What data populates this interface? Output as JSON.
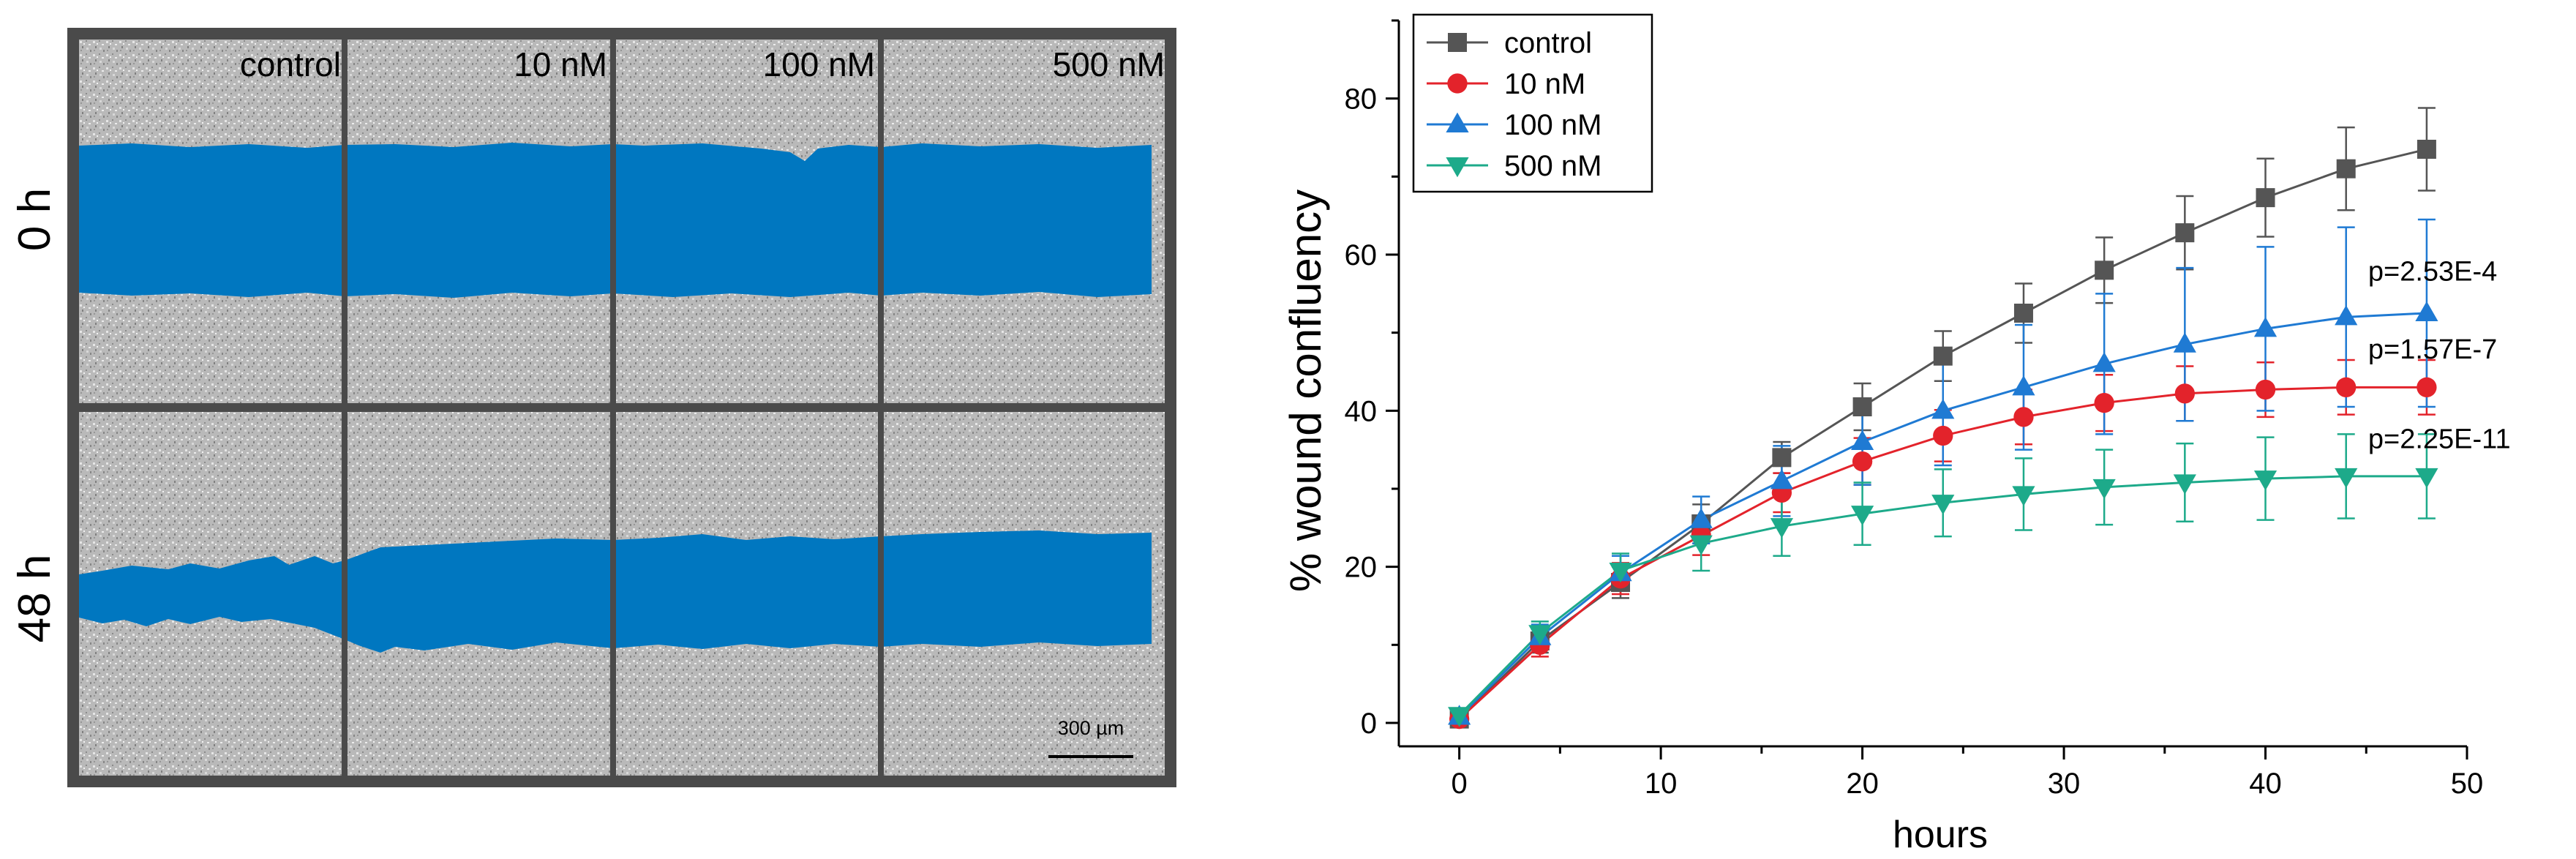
{
  "image_panel": {
    "row_labels": [
      "0 h",
      "48 h"
    ],
    "column_labels": [
      "control",
      "10 nM",
      "100 nM",
      "500 nM"
    ],
    "scale_bar_label": "300 µm",
    "colors": {
      "frame": "#4a4a4a",
      "cells": "#b7b7b7",
      "wound": "#0077c0"
    }
  },
  "chart_data": {
    "type": "line",
    "title": "",
    "xlabel": "hours",
    "ylabel": "% wound confluency",
    "xlim": [
      -3,
      50
    ],
    "ylim": [
      -3,
      90
    ],
    "xticks": [
      0,
      10,
      20,
      30,
      40,
      50
    ],
    "yticks": [
      0,
      20,
      40,
      60,
      80
    ],
    "legend_position": "top-left",
    "x": [
      0,
      4,
      8,
      12,
      16,
      20,
      24,
      28,
      32,
      36,
      40,
      44,
      48
    ],
    "series": [
      {
        "name": "control",
        "color": "#555555",
        "marker": "square",
        "values": [
          0.5,
          10.5,
          18.0,
          25.5,
          34.0,
          40.5,
          47.0,
          52.5,
          58.0,
          62.8,
          67.3,
          71.0,
          73.5
        ],
        "errors": [
          0.5,
          1.5,
          2.0,
          2.5,
          2.0,
          3.0,
          3.2,
          3.8,
          4.2,
          4.7,
          5.0,
          5.3,
          5.3
        ]
      },
      {
        "name": "10 nM",
        "color": "#e3232b",
        "marker": "circle",
        "values": [
          0.5,
          10.0,
          18.5,
          24.0,
          29.5,
          33.5,
          36.8,
          39.2,
          41.0,
          42.2,
          42.7,
          43.0,
          43.0
        ],
        "errors": [
          0.5,
          1.5,
          2.0,
          2.5,
          2.5,
          3.0,
          3.3,
          3.5,
          3.6,
          3.5,
          3.5,
          3.5,
          3.5
        ]
      },
      {
        "name": "100 nM",
        "color": "#1f7ad3",
        "marker": "triangle-up",
        "values": [
          0.8,
          11.0,
          19.2,
          26.0,
          31.0,
          36.0,
          40.0,
          43.0,
          46.0,
          48.5,
          50.5,
          52.0,
          52.5
        ],
        "errors": [
          0.6,
          1.6,
          2.2,
          3.0,
          4.5,
          5.5,
          7.0,
          8.0,
          9.0,
          9.8,
          10.5,
          11.5,
          12.0
        ]
      },
      {
        "name": "500 nM",
        "color": "#1daa8a",
        "marker": "triangle-down",
        "values": [
          1.0,
          11.5,
          19.5,
          23.0,
          25.2,
          26.8,
          28.2,
          29.3,
          30.2,
          30.8,
          31.3,
          31.6,
          31.6
        ],
        "errors": [
          0.6,
          1.5,
          2.2,
          3.5,
          3.8,
          4.0,
          4.3,
          4.6,
          4.8,
          5.0,
          5.3,
          5.4,
          5.4
        ]
      }
    ],
    "annotations": [
      {
        "text": "p=2.53E-4",
        "x": 48,
        "y": 58
      },
      {
        "text": "p=1.57E-7",
        "x": 48,
        "y": 48
      },
      {
        "text": "p=2.25E-11",
        "x": 48,
        "y": 36.5
      }
    ]
  }
}
